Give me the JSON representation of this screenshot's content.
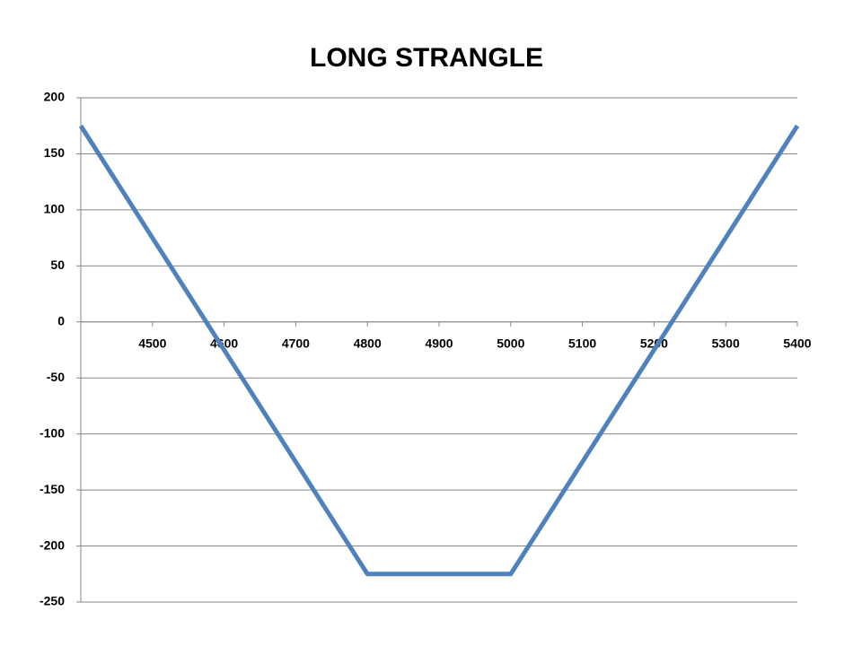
{
  "chart_data": {
    "type": "line",
    "title": "LONG STRANGLE",
    "x": [
      4400,
      4800,
      5000,
      5400
    ],
    "series": [
      {
        "color": "#4f81bd",
        "values": [
          175,
          -225,
          -225,
          175
        ]
      }
    ],
    "xlim": [
      4400,
      5400
    ],
    "xticks": [
      4500,
      4600,
      4700,
      4800,
      4900,
      5000,
      5100,
      5200,
      5300,
      5400
    ],
    "ylim": [
      -250,
      200
    ],
    "yticks": [
      -250,
      -200,
      -150,
      -100,
      -50,
      0,
      50,
      100,
      150,
      200
    ],
    "grid": true
  }
}
